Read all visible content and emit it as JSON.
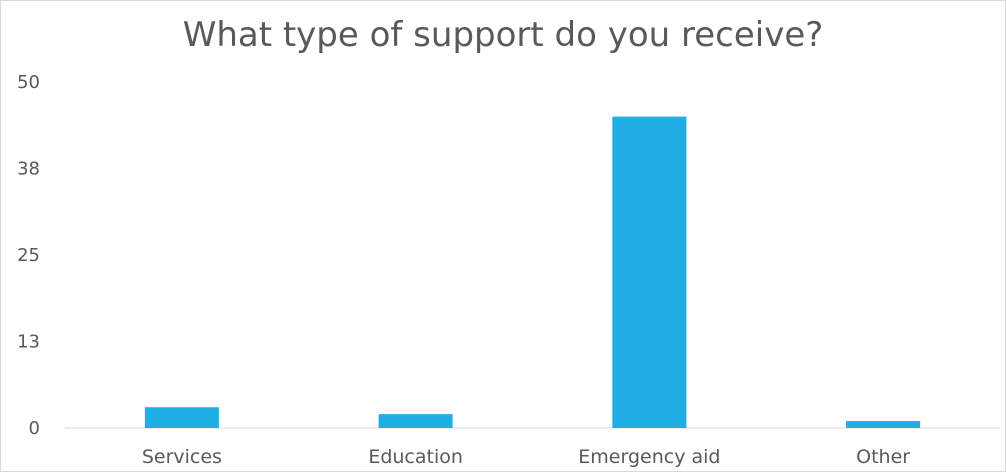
{
  "chart_data": {
    "type": "bar",
    "title": "What type of support do you receive?",
    "categories": [
      "Services",
      "Education",
      "Emergency aid",
      "Other"
    ],
    "values": [
      3,
      2,
      45,
      1
    ],
    "ylim": [
      0,
      50
    ],
    "yticks": [
      "0",
      "13",
      "25",
      "38",
      "50"
    ],
    "xlabel": "",
    "ylabel": "",
    "grid": false,
    "legend": "none",
    "bar_color": "#1FADE4",
    "axis_color": "#d9d9d9"
  }
}
